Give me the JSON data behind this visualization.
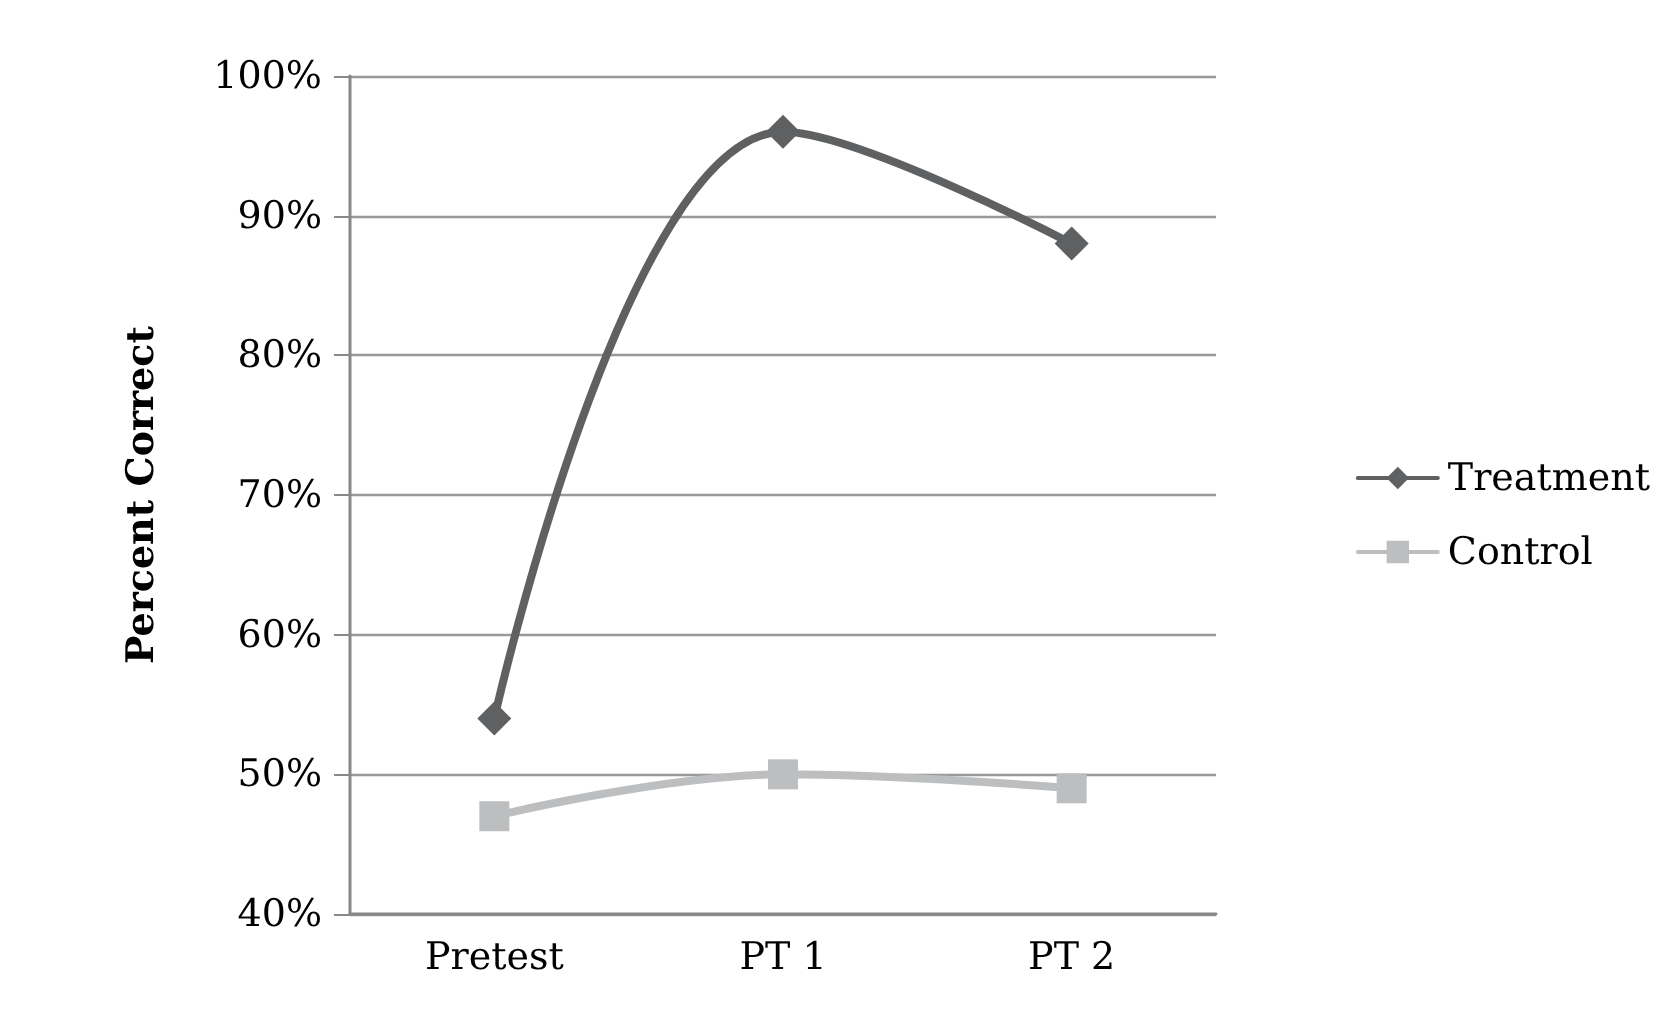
{
  "chart_data": {
    "type": "line",
    "ylabel": "Percent Correct",
    "categories": [
      "Pretest",
      "PT 1",
      "PT 2"
    ],
    "series": [
      {
        "name": "Treatment",
        "color": "#5f6062",
        "marker": "diamond",
        "values": [
          54,
          96,
          88
        ]
      },
      {
        "name": "Control",
        "color": "#bdbec0",
        "marker": "square",
        "values": [
          47,
          50,
          49
        ]
      }
    ],
    "ylim": [
      40,
      100
    ],
    "yticks": [
      {
        "value": 40,
        "label": "40%"
      },
      {
        "value": 50,
        "label": "50%"
      },
      {
        "value": 60,
        "label": "60%"
      },
      {
        "value": 70,
        "label": "70%"
      },
      {
        "value": 80,
        "label": "80%"
      },
      {
        "value": 90,
        "label": "90%"
      },
      {
        "value": 100,
        "label": "100%"
      }
    ],
    "grid": "y",
    "legend": "right",
    "line_style": "solid"
  }
}
